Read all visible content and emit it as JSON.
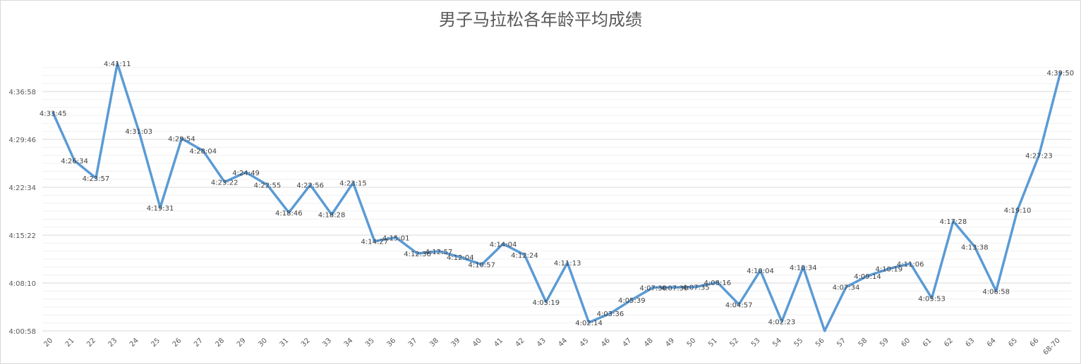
{
  "chart_data": {
    "type": "line",
    "title": "男子马拉松各年龄平均成绩",
    "xlabel": "",
    "ylabel": "",
    "categories": [
      "20",
      "21",
      "22",
      "23",
      "24",
      "25",
      "26",
      "27",
      "28",
      "29",
      "30",
      "31",
      "32",
      "33",
      "34",
      "35",
      "36",
      "37",
      "38",
      "39",
      "40",
      "41",
      "42",
      "43",
      "44",
      "45",
      "46",
      "47",
      "48",
      "49",
      "50",
      "51",
      "52",
      "53",
      "54",
      "55",
      "56",
      "57",
      "58",
      "59",
      "60",
      "61",
      "62",
      "63",
      "64",
      "65",
      "66",
      "68-70"
    ],
    "series": [
      {
        "color": "#5b9bd5",
        "labels": [
          "4:33:45",
          "4:26:34",
          "4:23:57",
          "4:41:11",
          "4:31:03",
          "4:19:31",
          "4:29:54",
          "4:28:04",
          "4:23:22",
          "4:24:49",
          "4:22:55",
          "4:18:46",
          "4:22:56",
          "4:18:28",
          "4:23:15",
          "4:14:27",
          "4:15:01",
          "4:12:36",
          "4:12:57",
          "4:12:04",
          "4:10:57",
          "4:14:04",
          "4:12:24",
          "4:05:19",
          "4:11:13",
          "4:02:14",
          "4:03:36",
          "4:05:39",
          "4:07:30",
          "4:07:30",
          "4:07:35",
          "4:08:16",
          "4:04:57",
          "4:10:04",
          "4:02:23",
          "4:10:34",
          "4:00:58",
          "4:07:34",
          "4:09:14",
          "4:10:19",
          "4:11:06",
          "4:05:53",
          "4:17:28",
          "4:13:38",
          "4:06:58",
          "4:19:10",
          "4:27:23",
          "4:39:50"
        ],
        "show_label": [
          true,
          true,
          true,
          true,
          true,
          true,
          true,
          true,
          true,
          true,
          true,
          true,
          true,
          true,
          true,
          true,
          true,
          true,
          true,
          true,
          true,
          true,
          true,
          true,
          true,
          true,
          true,
          true,
          true,
          true,
          true,
          true,
          true,
          true,
          true,
          true,
          false,
          true,
          true,
          true,
          true,
          true,
          true,
          true,
          true,
          true,
          true,
          true
        ]
      }
    ],
    "yticks": [
      "4:00:58",
      "4:08:10",
      "4:15:22",
      "4:22:34",
      "4:29:46",
      "4:36:58"
    ],
    "ylim": [
      "4:00:58",
      "4:41:11"
    ],
    "grid": true,
    "legend": "none"
  }
}
